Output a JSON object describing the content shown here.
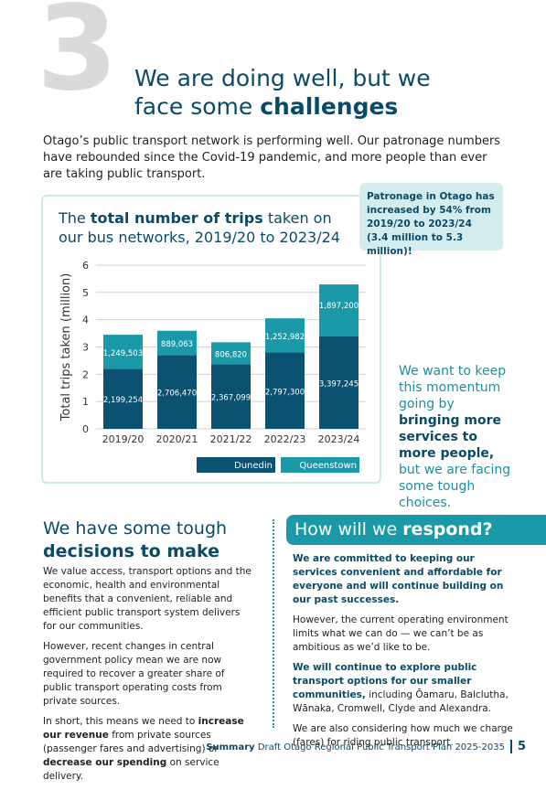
{
  "section_number": "3",
  "heading": [
    {
      "text": "We are doing well, but we face some ",
      "bold": false
    },
    {
      "text": "challenges",
      "bold": true
    }
  ],
  "intro": "Otago’s public transport network is performing well. Our patronage numbers have rebounded since the Covid-19 pandemic, and more people than ever are taking public transport.",
  "callout": "Patronage in Otago has increased by 54% from 2019/20 to 2023/24 (3.4 million to 5.3 million)!",
  "side_note": [
    {
      "text": "We want to keep this momentum going by ",
      "bold": false
    },
    {
      "text": "bringing more services to more people,",
      "bold": true
    },
    {
      "text": " but we are facing some tough choices.",
      "bold": false
    }
  ],
  "left": {
    "heading": [
      {
        "text": "We have some tough ",
        "bold": false
      },
      {
        "text": "decisions to make",
        "bold": true
      }
    ],
    "paragraphs": [
      [
        {
          "text": "We value access, transport options and the economic, health and environmental benefits that a convenient, reliable and efficient public transport system delivers for our communities.",
          "bold": false
        }
      ],
      [
        {
          "text": "However, recent changes in central government policy mean we are now required to recover a greater share of public transport operating costs from private sources.",
          "bold": false
        }
      ],
      [
        {
          "text": "In short, this means we need to ",
          "bold": false
        },
        {
          "text": "increase our revenue",
          "bold": true
        },
        {
          "text": " from private sources (passenger fares and advertising) or ",
          "bold": false
        },
        {
          "text": "decrease our spending",
          "bold": true
        },
        {
          "text": " on service delivery.",
          "bold": false
        }
      ]
    ]
  },
  "right": {
    "heading": [
      {
        "text": "How will we ",
        "bold": false
      },
      {
        "text": "respond?",
        "bold": true
      }
    ],
    "paragraphs": [
      [
        {
          "text": "We are committed to keeping our services convenient and affordable for everyone and will continue building on our past successes.",
          "bold": true
        }
      ],
      [
        {
          "text": "However, the current operating environment limits what we can do — we can’t be as ambitious as we’d like to be.",
          "bold": false
        }
      ],
      [
        {
          "text": "We will continue to explore public transport options for our smaller communities,",
          "bold": true
        },
        {
          "text": " including Ōamaru, Balclutha, Wānaka, Cromwell, Clyde and Alexandra.",
          "bold": false
        }
      ],
      [
        {
          "text": "We are also considering how much we charge (fares) for riding public transport.",
          "bold": false
        }
      ]
    ]
  },
  "footer": [
    {
      "text": "Summary",
      "bold": true
    },
    {
      "text": " Draft Otago Regional Public Transport Plan ",
      "bold": false
    },
    {
      "text": "2025-2035",
      "bold": false
    }
  ],
  "page_number": "5",
  "chart_data": {
    "type": "bar",
    "stacked": true,
    "title": [
      {
        "text": "The ",
        "bold": false
      },
      {
        "text": "total number of trips",
        "bold": true
      },
      {
        "text": " taken on our bus networks, 2019/20 to 2023/24",
        "bold": false
      }
    ],
    "ylabel": "Total trips taken (million)",
    "categories": [
      "2019/20",
      "2020/21",
      "2021/22",
      "2022/23",
      "2023/24"
    ],
    "series": [
      {
        "name": "Dunedin",
        "color": "#0b5172",
        "values": [
          2.199254,
          2.70647,
          2.367099,
          2.7973,
          3.397245
        ],
        "value_labels": [
          "2,199,254",
          "2,706,470",
          "2,367,099",
          "2,797,300",
          "3,397,245"
        ]
      },
      {
        "name": "Queenstown",
        "color": "#1a9aa8",
        "values": [
          1.249503,
          0.889063,
          0.80682,
          1.252982,
          1.8972
        ],
        "value_labels": [
          "1,249,503",
          "889,063",
          "806,820",
          "1,252,982",
          "1,897,200"
        ]
      }
    ],
    "ylim": [
      0,
      6
    ],
    "yticks": [
      0,
      1,
      2,
      3,
      4,
      5,
      6
    ],
    "grid": true,
    "legend": "bottom"
  }
}
